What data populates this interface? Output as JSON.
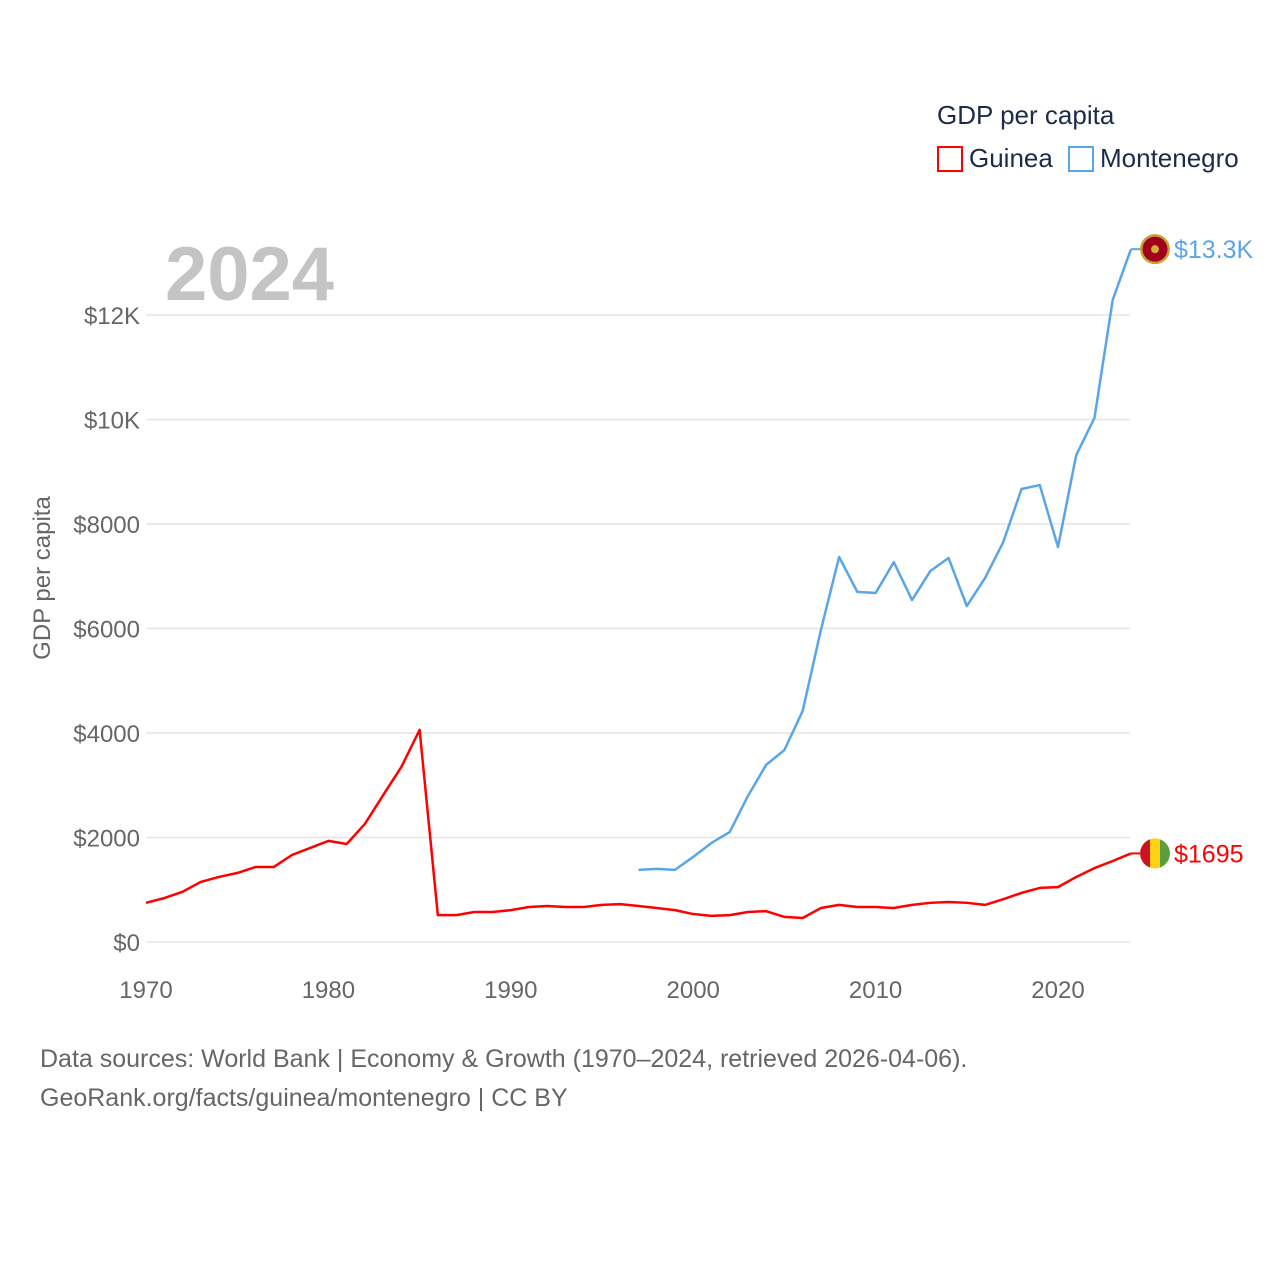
{
  "chart_data": {
    "type": "line",
    "year_label": "2024",
    "ylabel": "GDP per capita",
    "xlabel": "",
    "xlim": [
      1970,
      2024
    ],
    "ylim": [
      0,
      13300
    ],
    "x_ticks": [
      1970,
      1980,
      1990,
      2000,
      2010,
      2020
    ],
    "x_tick_labels": [
      "1970",
      "1980",
      "1990",
      "2000",
      "2010",
      "2020"
    ],
    "y_ticks": [
      0,
      2000,
      4000,
      6000,
      8000,
      10000,
      12000
    ],
    "y_tick_labels": [
      "$0",
      "$2000",
      "$4000",
      "$6000",
      "$8000",
      "$10K",
      "$12K"
    ],
    "grid": true,
    "legend": {
      "title": "GDP per capita",
      "placement": "top-right"
    },
    "series": [
      {
        "name": "Guinea",
        "color": "#ff0000",
        "end_label": "$1695",
        "x_start": 1970,
        "values": [
          750,
          840,
          960,
          1150,
          1245,
          1320,
          1435,
          1435,
          1665,
          1800,
          1935,
          1875,
          2260,
          2810,
          3350,
          4060,
          515,
          515,
          575,
          575,
          610,
          670,
          690,
          670,
          670,
          710,
          725,
          690,
          650,
          610,
          535,
          500,
          515,
          575,
          590,
          480,
          460,
          650,
          710,
          670,
          670,
          650,
          710,
          750,
          765,
          750,
          710,
          820,
          940,
          1035,
          1050,
          1245,
          1415,
          1550,
          1695
        ]
      },
      {
        "name": "Montenegro",
        "color": "#5aa5e8",
        "end_label": "$13.3K",
        "x_start": 1997,
        "values": [
          1380,
          1400,
          1380,
          1630,
          1895,
          2105,
          2795,
          3390,
          3675,
          4420,
          5970,
          7370,
          6700,
          6680,
          7270,
          6545,
          7100,
          7350,
          6430,
          6965,
          7655,
          8670,
          8745,
          7560,
          9320,
          10030,
          12290,
          13260
        ]
      }
    ]
  },
  "footer": {
    "line1": "Data sources: World Bank | Economy & Growth (1970–2024, retrieved 2026-04-06).",
    "line2": "GeoRank.org/facts/guinea/montenegro | CC BY"
  }
}
